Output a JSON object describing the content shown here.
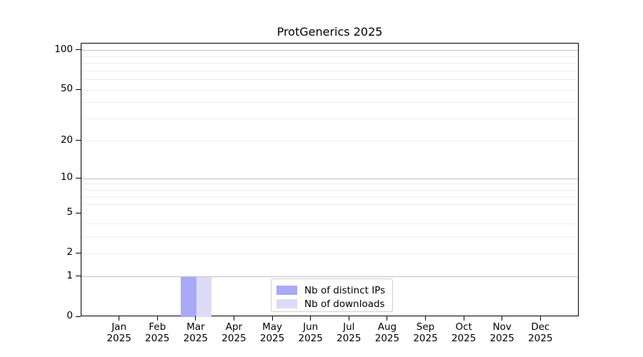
{
  "chart_data": {
    "type": "bar",
    "title": "ProtGenerics 2025",
    "x_year": "2025",
    "categories": [
      "Jan",
      "Feb",
      "Mar",
      "Apr",
      "May",
      "Jun",
      "Jul",
      "Aug",
      "Sep",
      "Oct",
      "Nov",
      "Dec"
    ],
    "series": [
      {
        "name": "Nb of distinct IPs",
        "color": "#a9a9f7",
        "values": [
          0,
          0,
          1,
          0,
          0,
          0,
          0,
          0,
          0,
          0,
          0,
          0
        ]
      },
      {
        "name": "Nb of downloads",
        "color": "#dcdcf8",
        "values": [
          0,
          0,
          1,
          0,
          0,
          0,
          0,
          0,
          0,
          0,
          0,
          0
        ]
      }
    ],
    "y_scale": "log1p",
    "ylim": [
      0,
      113
    ],
    "y_ticks": [
      0,
      1,
      2,
      5,
      10,
      20,
      50,
      100
    ],
    "y_major_gridlines": [
      1,
      10,
      100
    ],
    "y_minor_gridlines": [
      2,
      3,
      4,
      6,
      7,
      8,
      9,
      20,
      30,
      40,
      50,
      60,
      70,
      80,
      90
    ],
    "grid": true,
    "legend_position": "lower center",
    "colors": {
      "major_grid": "#c2c2c2",
      "minor_grid": "#ededed",
      "spine": "#000000",
      "background": "#ffffff",
      "text": "#000000"
    }
  }
}
